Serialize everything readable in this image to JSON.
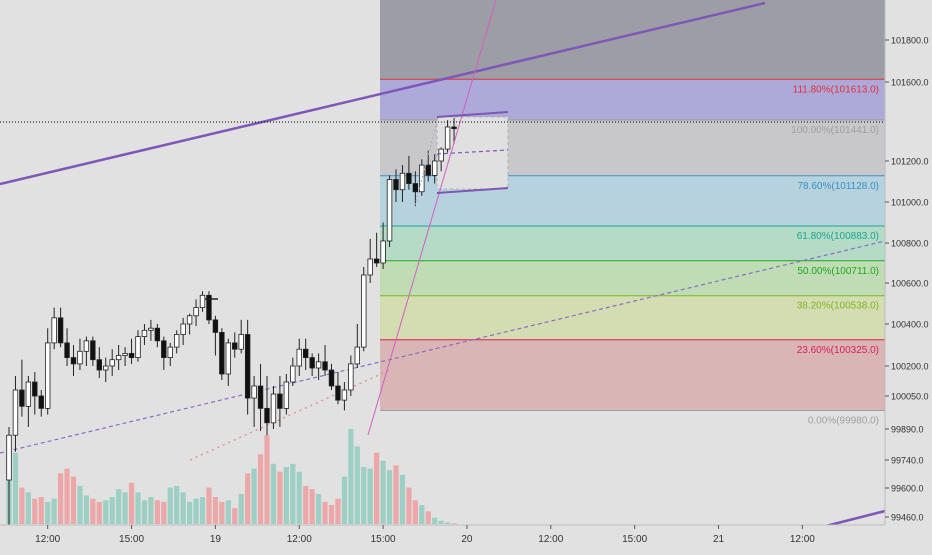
{
  "chart_data": {
    "type": "candlestick",
    "y_range": [
      99420,
      102000
    ],
    "y_ticks": [
      {
        "value": 101800,
        "label": "101800.0"
      },
      {
        "value": 101600,
        "label": "101600.0"
      },
      {
        "value": 101200,
        "label": "101200.0"
      },
      {
        "value": 101000,
        "label": "101000.0"
      },
      {
        "value": 100800,
        "label": "100800.0"
      },
      {
        "value": 100600,
        "label": "100600.0"
      },
      {
        "value": 100400,
        "label": "100400.0"
      },
      {
        "value": 100200,
        "label": "100200.0"
      },
      {
        "value": 100050,
        "label": "100050.0"
      },
      {
        "value": 99890,
        "label": "99890.0"
      },
      {
        "value": 99740,
        "label": "99740.0"
      },
      {
        "value": 99600,
        "label": "99600.0"
      },
      {
        "value": 99460,
        "label": "99460.0"
      }
    ],
    "x_ticks": [
      {
        "bar": 6,
        "label": "12:00"
      },
      {
        "bar": 19,
        "label": "15:00"
      },
      {
        "bar": 32,
        "label": "19"
      },
      {
        "bar": 45,
        "label": "12:00"
      },
      {
        "bar": 58,
        "label": "15:00"
      },
      {
        "bar": 71,
        "label": "20"
      },
      {
        "bar": 84,
        "label": "12:00"
      },
      {
        "bar": 97,
        "label": "15:00"
      },
      {
        "bar": 110,
        "label": "21"
      },
      {
        "bar": 123,
        "label": "12:00"
      }
    ],
    "current_price": {
      "value": 101390,
      "label": "101390.0"
    },
    "fib_levels": [
      {
        "ratio": "111.80%",
        "price": 101613,
        "label": "111.80%(101613.0)",
        "color": "#e0303e",
        "fill": "#ada9d8"
      },
      {
        "ratio": "100.00%",
        "price": 101441,
        "label": "100.00%(101441.0)",
        "color": "#a0a0a0",
        "fill": "#c8c8cb"
      },
      {
        "ratio": "78.60%",
        "price": 101128,
        "label": "78.60%(101128.0)",
        "color": "#3a8fc8",
        "fill": "#b6d2df"
      },
      {
        "ratio": "61.80%",
        "price": 100883,
        "label": "61.80%(100883.0)",
        "color": "#16a890",
        "fill": "#b5dac6"
      },
      {
        "ratio": "50.00%",
        "price": 100711,
        "label": "50.00%(100711.0)",
        "color": "#1ea81e",
        "fill": "#bfdcb5"
      },
      {
        "ratio": "38.20%",
        "price": 100538,
        "label": "38.20%(100538.0)",
        "color": "#7cb826",
        "fill": "#d4dcb1"
      },
      {
        "ratio": "23.60%",
        "price": 100325,
        "label": "23.60%(100325.0)",
        "color": "#d81e5c",
        "fill": "#d9b5b6"
      },
      {
        "ratio": "0.00%",
        "price": 99980,
        "label": "0.00%(99980.0)",
        "color": "#a0a0a0",
        "fill": "#d9b5b6"
      }
    ],
    "ohlc": [
      [
        99640,
        99900,
        99300,
        99860
      ],
      [
        99860,
        100150,
        99780,
        100080
      ],
      [
        100080,
        100230,
        99950,
        100000
      ],
      [
        100000,
        100150,
        99900,
        100120
      ],
      [
        100120,
        100170,
        99960,
        100050
      ],
      [
        100050,
        100080,
        99950,
        99990
      ],
      [
        99990,
        100380,
        99960,
        100310
      ],
      [
        100310,
        100480,
        100280,
        100430
      ],
      [
        100430,
        100480,
        100290,
        100310
      ],
      [
        100310,
        100380,
        100200,
        100240
      ],
      [
        100240,
        100300,
        100150,
        100210
      ],
      [
        100210,
        100330,
        100180,
        100270
      ],
      [
        100270,
        100340,
        100200,
        100320
      ],
      [
        100320,
        100340,
        100200,
        100230
      ],
      [
        100230,
        100290,
        100140,
        100180
      ],
      [
        100180,
        100240,
        100120,
        100200
      ],
      [
        100200,
        100280,
        100150,
        100230
      ],
      [
        100230,
        100300,
        100180,
        100250
      ],
      [
        100250,
        100290,
        100200,
        100260
      ],
      [
        100260,
        100330,
        100210,
        100240
      ],
      [
        100240,
        100370,
        100220,
        100340
      ],
      [
        100340,
        100400,
        100300,
        100370
      ],
      [
        100370,
        100420,
        100320,
        100380
      ],
      [
        100380,
        100400,
        100290,
        100320
      ],
      [
        100320,
        100340,
        100180,
        100240
      ],
      [
        100240,
        100310,
        100200,
        100290
      ],
      [
        100290,
        100370,
        100260,
        100350
      ],
      [
        100350,
        100430,
        100300,
        100400
      ],
      [
        100400,
        100450,
        100350,
        100440
      ],
      [
        100440,
        100520,
        100390,
        100480
      ],
      [
        100480,
        100560,
        100460,
        100540
      ],
      [
        100540,
        100560,
        100400,
        100420
      ],
      [
        100420,
        100440,
        100250,
        100360
      ],
      [
        100360,
        100380,
        100130,
        100160
      ],
      [
        100160,
        100330,
        100100,
        100310
      ],
      [
        100310,
        100360,
        100240,
        100280
      ],
      [
        100280,
        100420,
        100260,
        100350
      ],
      [
        100350,
        100420,
        99960,
        100040
      ],
      [
        100040,
        100150,
        99900,
        100100
      ],
      [
        100100,
        100210,
        99880,
        99990
      ],
      [
        99990,
        100150,
        99860,
        99920
      ],
      [
        99920,
        100100,
        99890,
        100060
      ],
      [
        100060,
        100150,
        99900,
        99990
      ],
      [
        99990,
        100160,
        99960,
        100120
      ],
      [
        100120,
        100240,
        100100,
        100200
      ],
      [
        100200,
        100330,
        100150,
        100280
      ],
      [
        100280,
        100330,
        100180,
        100240
      ],
      [
        100240,
        100260,
        100150,
        100190
      ],
      [
        100190,
        100260,
        100130,
        100220
      ],
      [
        100220,
        100300,
        100150,
        100180
      ],
      [
        100180,
        100210,
        100080,
        100100
      ],
      [
        100100,
        100170,
        100010,
        100030
      ],
      [
        100030,
        100120,
        99980,
        100080
      ],
      [
        100080,
        100250,
        100050,
        100210
      ],
      [
        100210,
        100400,
        100190,
        100290
      ],
      [
        100290,
        100680,
        100270,
        100640
      ],
      [
        100640,
        100820,
        100600,
        100720
      ],
      [
        100720,
        100850,
        100680,
        100700
      ],
      [
        100700,
        100900,
        100670,
        100810
      ],
      [
        100810,
        101130,
        100780,
        101110
      ],
      [
        101110,
        101160,
        101000,
        101060
      ],
      [
        101060,
        101180,
        101000,
        101140
      ],
      [
        101140,
        101230,
        101060,
        101090
      ],
      [
        101090,
        101150,
        100980,
        101050
      ],
      [
        101050,
        101210,
        101030,
        101180
      ],
      [
        101180,
        101260,
        101100,
        101130
      ],
      [
        101130,
        101240,
        101090,
        101200
      ],
      [
        101200,
        101280,
        101150,
        101270
      ],
      [
        101270,
        101440,
        101250,
        101400
      ],
      [
        101400,
        101450,
        101300,
        101390
      ]
    ],
    "volume": [
      5000,
      4500,
      2300,
      2000,
      1600,
      1700,
      1400,
      1600,
      3200,
      3500,
      3000,
      2400,
      1800,
      1600,
      1400,
      1500,
      1700,
      2200,
      2000,
      2600,
      2000,
      1500,
      1700,
      1500,
      1400,
      2300,
      2400,
      2000,
      1400,
      1600,
      1700,
      2300,
      1700,
      1400,
      1500,
      1000,
      1900,
      3200,
      3500,
      4400,
      5600,
      3800,
      3300,
      3600,
      3800,
      3300,
      2400,
      2200,
      1900,
      1400,
      1200,
      1600,
      3000,
      6000,
      4900,
      3600,
      3500,
      4500,
      4000,
      3400,
      3700,
      3100,
      2300,
      1500,
      1200,
      800,
      400,
      200,
      100,
      50
    ]
  }
}
